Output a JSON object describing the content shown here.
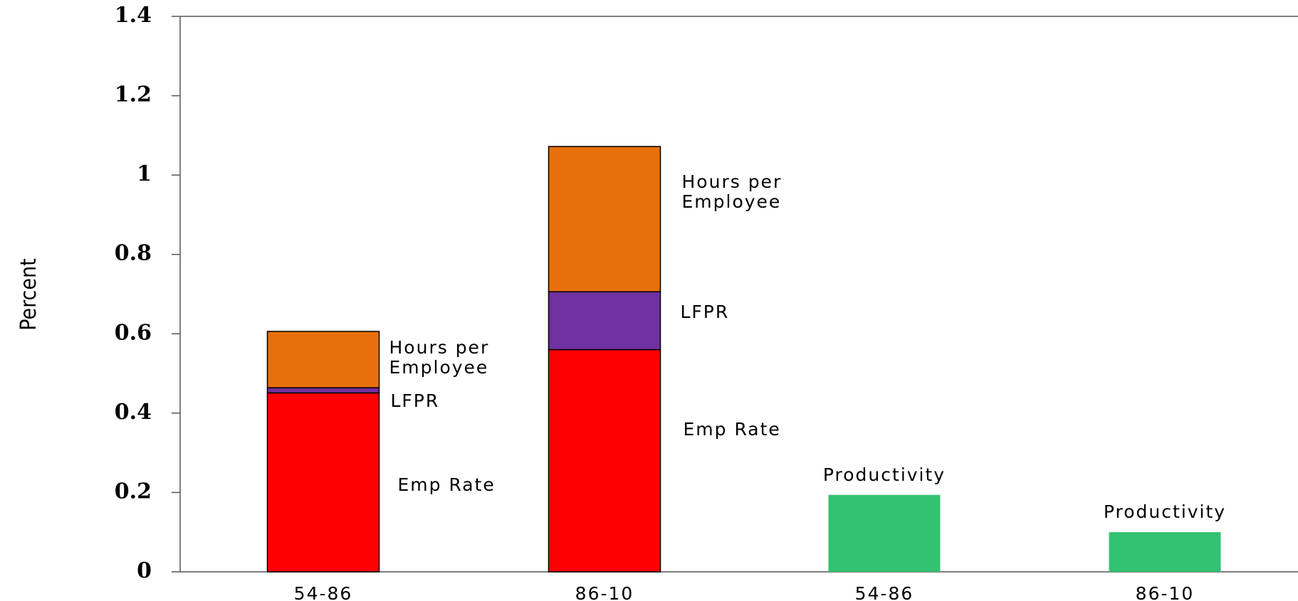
{
  "chart_data": {
    "type": "stacked-bar",
    "y_label": "Percent",
    "categories": [
      "54-86",
      "86-10",
      "54-86",
      "86-10"
    ],
    "series": [
      {
        "name": "Emp Rate",
        "color": "#ff0000",
        "values": [
          0.451,
          0.56,
          null,
          null
        ]
      },
      {
        "name": "LFPR",
        "color": "#7030a0",
        "values": [
          0.013,
          0.146,
          null,
          null
        ]
      },
      {
        "name": "Hours per Employee",
        "color": "#e8700c",
        "values": [
          0.142,
          0.366,
          null,
          null
        ]
      },
      {
        "name": "Productivity",
        "color": "#33c172",
        "values": [
          null,
          null,
          0.194,
          0.1
        ]
      }
    ],
    "ylim": [
      0,
      1.4
    ],
    "yticks": [
      0,
      0.2,
      0.4,
      0.6,
      0.8,
      1,
      1.2,
      1.4
    ]
  }
}
